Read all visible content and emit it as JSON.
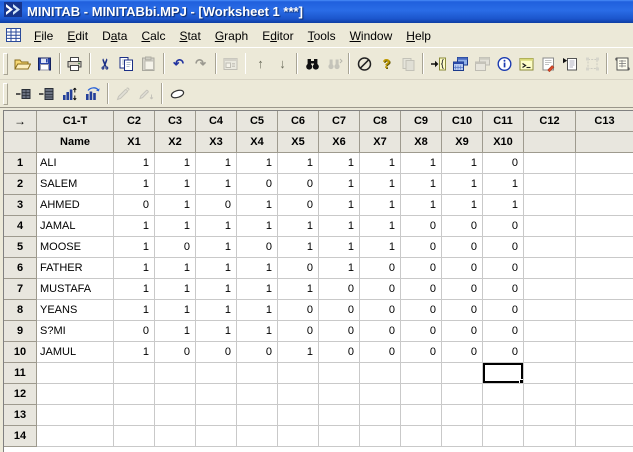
{
  "window": {
    "title": "MINITAB - MINITABbi.MPJ - [Worksheet 1 ***]",
    "app_icon": "minitab-logo-icon"
  },
  "menu_bar": {
    "mdi_icon": "worksheet-grid-icon",
    "items": [
      {
        "label": "File",
        "hotkey_index": 0
      },
      {
        "label": "Edit",
        "hotkey_index": 0
      },
      {
        "label": "Data",
        "hotkey_index": 1
      },
      {
        "label": "Calc",
        "hotkey_index": 0
      },
      {
        "label": "Stat",
        "hotkey_index": 0
      },
      {
        "label": "Graph",
        "hotkey_index": 0
      },
      {
        "label": "Editor",
        "hotkey_index": 1
      },
      {
        "label": "Tools",
        "hotkey_index": 0
      },
      {
        "label": "Window",
        "hotkey_index": 0
      },
      {
        "label": "Help",
        "hotkey_index": 0
      }
    ]
  },
  "toolbars": [
    {
      "id": "toolbar1",
      "groups": [
        [
          {
            "button": "open-file-button",
            "icon": "open-folder-icon",
            "enabled": true
          },
          {
            "button": "save-project-button",
            "icon": "floppy-disk-icon",
            "enabled": true
          }
        ],
        [
          {
            "button": "print-button",
            "icon": "printer-icon",
            "enabled": true
          }
        ],
        [
          {
            "button": "cut-button",
            "icon": "scissors-icon",
            "enabled": true
          },
          {
            "button": "copy-button",
            "icon": "copy-pages-icon",
            "enabled": true
          },
          {
            "button": "paste-button",
            "icon": "clipboard-icon",
            "enabled": false
          }
        ],
        [
          {
            "button": "undo-button",
            "icon": "undo-arrow-icon",
            "enabled": true
          },
          {
            "button": "redo-button",
            "icon": "redo-arrow-icon",
            "enabled": false
          }
        ],
        [
          {
            "button": "print-preview-button",
            "icon": "window-lines-icon",
            "enabled": false
          }
        ],
        [
          {
            "button": "previous-button",
            "icon": "arrow-up-icon",
            "enabled": true
          },
          {
            "button": "next-button",
            "icon": "arrow-down-icon",
            "enabled": true
          }
        ],
        [
          {
            "button": "find-button",
            "icon": "binoculars-icon",
            "enabled": true
          },
          {
            "button": "find-next-button",
            "icon": "binoculars-next-icon",
            "enabled": false
          }
        ],
        [
          {
            "button": "cancel-button",
            "icon": "no-symbol-icon",
            "enabled": true
          },
          {
            "button": "help-button",
            "icon": "question-mark-icon",
            "enabled": true
          },
          {
            "button": "statguide-button",
            "icon": "pages-icon",
            "enabled": false
          }
        ],
        [
          {
            "button": "edit-last-dialog-button",
            "icon": "arrow-brace-icon",
            "enabled": true
          },
          {
            "button": "show-worksheets-button",
            "icon": "stacked-windows-blue-icon",
            "enabled": true
          },
          {
            "button": "show-graphs-button",
            "icon": "stacked-windows-gray-icon",
            "enabled": false
          },
          {
            "button": "show-info-button",
            "icon": "info-circle-icon",
            "enabled": true
          },
          {
            "button": "show-session-button",
            "icon": "session-window-icon",
            "enabled": true
          },
          {
            "button": "show-history-button",
            "icon": "history-notepad-icon",
            "enabled": true
          },
          {
            "button": "new-worksheet-button",
            "icon": "document-arrow-icon",
            "enabled": true
          },
          {
            "button": "select-item-button",
            "icon": "selection-handles-icon",
            "enabled": false
          }
        ],
        [
          {
            "button": "show-worksheet-button",
            "icon": "scroll-grid-icon",
            "enabled": true
          }
        ]
      ]
    },
    {
      "id": "toolbar2",
      "groups": [
        [
          {
            "button": "insert-cells-button",
            "icon": "grid-minus-icon",
            "enabled": true
          },
          {
            "button": "insert-rows-button",
            "icon": "grid-minus-tall-icon",
            "enabled": true
          },
          {
            "button": "move-columns-button",
            "icon": "bars-arrows-icon",
            "enabled": true
          },
          {
            "button": "value-order-button",
            "icon": "bars-curved-arrow-icon",
            "enabled": true
          }
        ],
        [
          {
            "button": "highlight-button",
            "icon": "brush-icon",
            "enabled": false
          },
          {
            "button": "highlight-next-button",
            "icon": "brush-arrow-icon",
            "enabled": false
          }
        ],
        [
          {
            "button": "clear-button",
            "icon": "eraser-icon",
            "enabled": true
          }
        ]
      ]
    }
  ],
  "worksheet": {
    "direction_arrow": "→",
    "column_headers": [
      "C1-T",
      "C2",
      "C3",
      "C4",
      "C5",
      "C6",
      "C7",
      "C8",
      "C9",
      "C10",
      "C11",
      "C12",
      "C13"
    ],
    "variable_names": [
      "Name",
      "X1",
      "X2",
      "X3",
      "X4",
      "X5",
      "X6",
      "X7",
      "X8",
      "X9",
      "X10",
      "",
      ""
    ],
    "rows": [
      {
        "num": "1",
        "name": "ALI",
        "values": [
          "1",
          "1",
          "1",
          "1",
          "1",
          "1",
          "1",
          "1",
          "1",
          "0"
        ]
      },
      {
        "num": "2",
        "name": "SALEM",
        "values": [
          "1",
          "1",
          "1",
          "0",
          "0",
          "1",
          "1",
          "1",
          "1",
          "1"
        ]
      },
      {
        "num": "3",
        "name": "AHMED",
        "values": [
          "0",
          "1",
          "0",
          "1",
          "0",
          "1",
          "1",
          "1",
          "1",
          "1"
        ]
      },
      {
        "num": "4",
        "name": "JAMAL",
        "values": [
          "1",
          "1",
          "1",
          "1",
          "1",
          "1",
          "1",
          "0",
          "0",
          "0"
        ]
      },
      {
        "num": "5",
        "name": "MOOSE",
        "values": [
          "1",
          "0",
          "1",
          "0",
          "1",
          "1",
          "1",
          "0",
          "0",
          "0"
        ]
      },
      {
        "num": "6",
        "name": "FATHER",
        "values": [
          "1",
          "1",
          "1",
          "1",
          "0",
          "1",
          "0",
          "0",
          "0",
          "0"
        ]
      },
      {
        "num": "7",
        "name": "MUSTAFA",
        "values": [
          "1",
          "1",
          "1",
          "1",
          "1",
          "0",
          "0",
          "0",
          "0",
          "0"
        ]
      },
      {
        "num": "8",
        "name": "YEANS",
        "values": [
          "1",
          "1",
          "1",
          "1",
          "0",
          "0",
          "0",
          "0",
          "0",
          "0"
        ]
      },
      {
        "num": "9",
        "name": "S?MI",
        "values": [
          "0",
          "1",
          "1",
          "1",
          "0",
          "0",
          "0",
          "0",
          "0",
          "0"
        ]
      },
      {
        "num": "10",
        "name": "JAMUL",
        "values": [
          "1",
          "0",
          "0",
          "0",
          "1",
          "0",
          "0",
          "0",
          "0",
          "0"
        ]
      }
    ],
    "empty_row_numbers": [
      "11",
      "12",
      "13",
      "14"
    ],
    "selected_cell": {
      "row": "11",
      "column": "C11"
    }
  },
  "colors": {
    "title_bar_blue": "#2a6ce6",
    "chrome_beige": "#ECE9D8",
    "header_gray": "#E8E6DE",
    "grid_line": "#c9c9c9",
    "selection": "#000000"
  }
}
